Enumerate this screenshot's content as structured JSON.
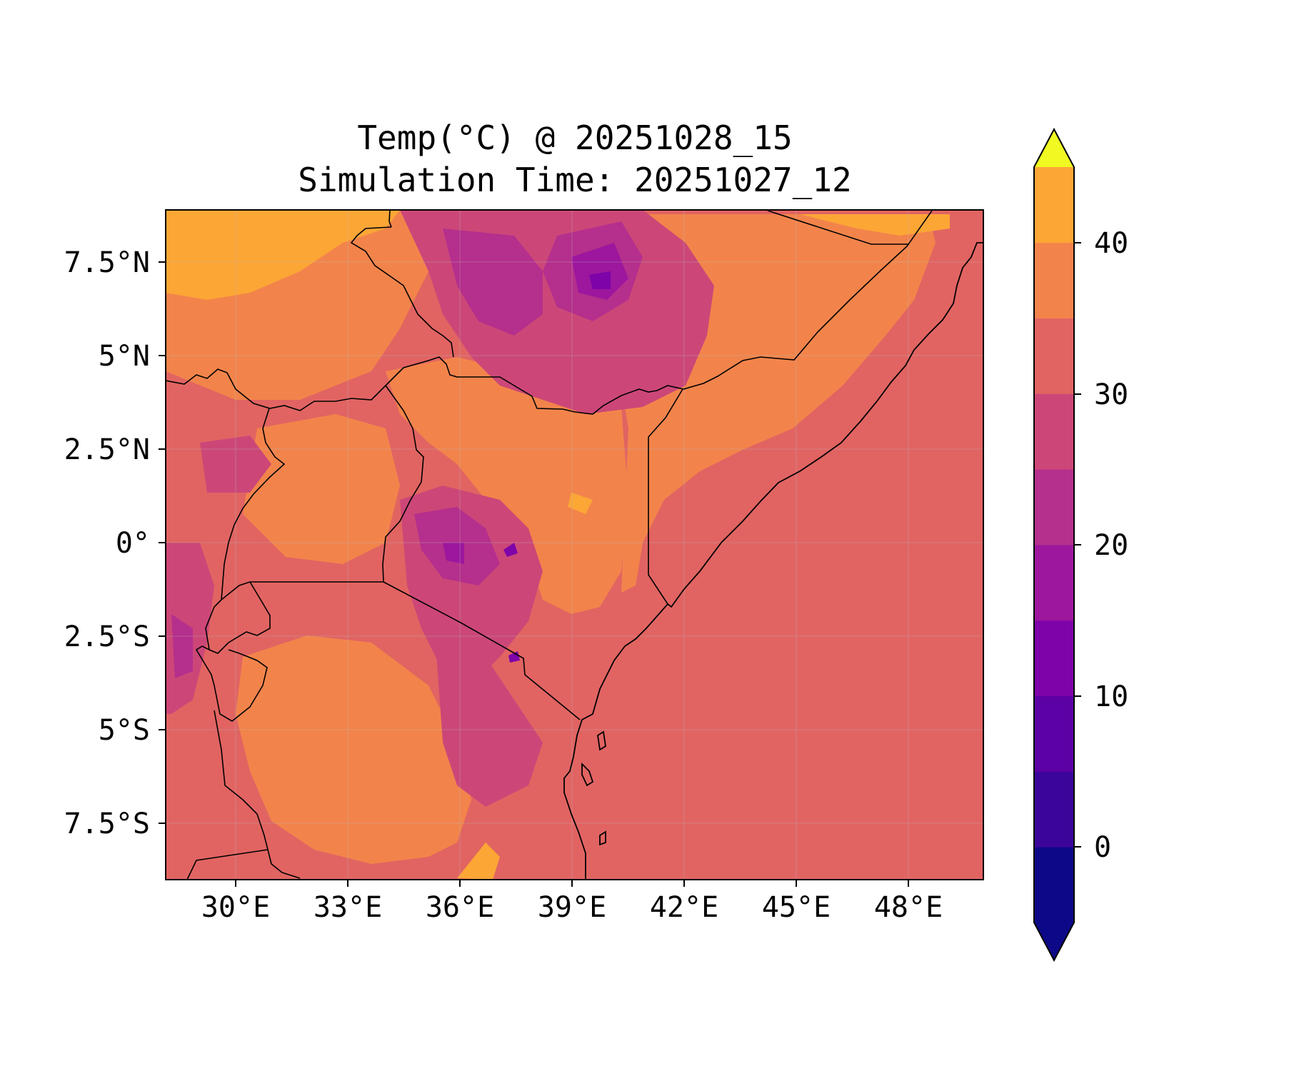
{
  "title": {
    "line1": "Temp(°C) @ 20251028_15",
    "line2": "Simulation Time: 20251027_12"
  },
  "map": {
    "lon_range": [
      27.5,
      49.4
    ],
    "lat_range": [
      -9.0,
      8.9
    ],
    "x_ticks": [
      "30°E",
      "33°E",
      "36°E",
      "39°E",
      "42°E",
      "45°E",
      "48°E"
    ],
    "y_ticks": [
      "7.5°N",
      "5°N",
      "2.5°N",
      "0°",
      "2.5°S",
      "5°S",
      "7.5°S"
    ],
    "grid": "faint"
  },
  "colorbar": {
    "ticks": [
      "40",
      "30",
      "20",
      "10",
      "0"
    ],
    "levels": [
      -5,
      0,
      5,
      10,
      15,
      20,
      25,
      30,
      35,
      40,
      45
    ],
    "extend": "both",
    "palette": "plasma",
    "colors": [
      "#0d0887",
      "#3b049a",
      "#5c01a6",
      "#7e03a8",
      "#9c179e",
      "#b52f8c",
      "#cc4778",
      "#e16462",
      "#f2844b",
      "#fca636",
      "#f0f921"
    ],
    "over_color": "#f0f921",
    "under_color": "#0d0887"
  }
}
